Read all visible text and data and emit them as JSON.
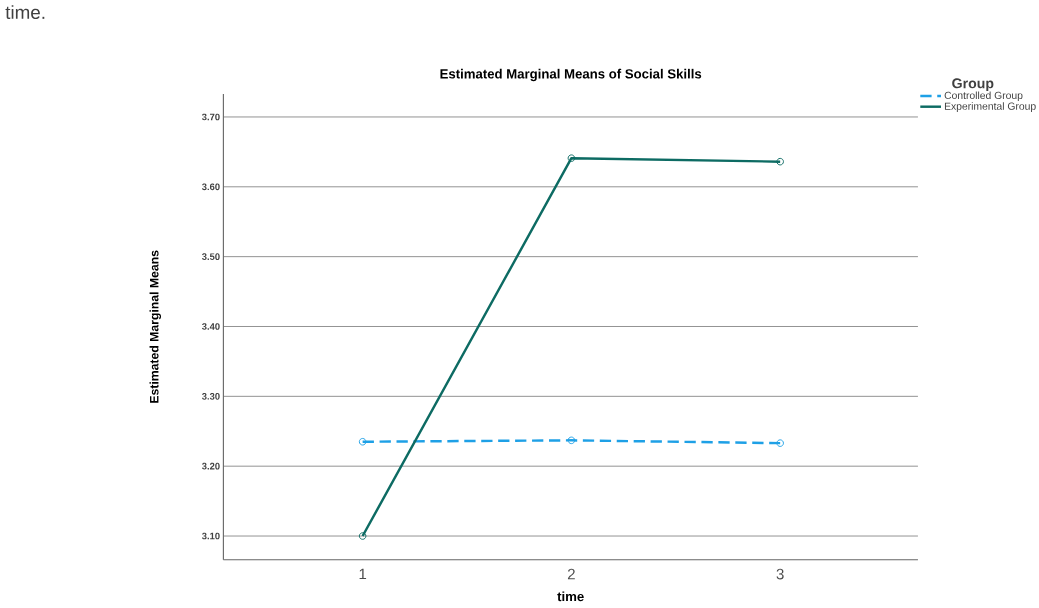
{
  "chart_data": {
    "type": "line",
    "title": "Estimated Marginal Means of Social Skills",
    "xlabel": "time",
    "ylabel": "Estimated Marginal Means",
    "legend_title": "Group",
    "annotations": [
      "time."
    ],
    "categories": [
      "1",
      "2",
      "3"
    ],
    "series": [
      {
        "name": "Controlled Group",
        "color": "#1ea0e6",
        "line_style": "dashed",
        "values": [
          3.235,
          3.237,
          3.233
        ]
      },
      {
        "name": "Experimental Group",
        "color": "#0d6b63",
        "line_style": "solid",
        "values": [
          3.1,
          3.641,
          3.636
        ]
      }
    ],
    "ylim": [
      3.066,
      3.733
    ],
    "yticks": [
      {
        "value": 3.1,
        "label": "3.10"
      },
      {
        "value": 3.2,
        "label": "3.20"
      },
      {
        "value": 3.3,
        "label": "3.30"
      },
      {
        "value": 3.4,
        "label": "3.40"
      },
      {
        "value": 3.5,
        "label": "3.50"
      },
      {
        "value": 3.6,
        "label": "3.60"
      },
      {
        "value": 3.7,
        "label": "3.70"
      }
    ],
    "grid": "y",
    "legend": "top right",
    "marker": "circle"
  }
}
